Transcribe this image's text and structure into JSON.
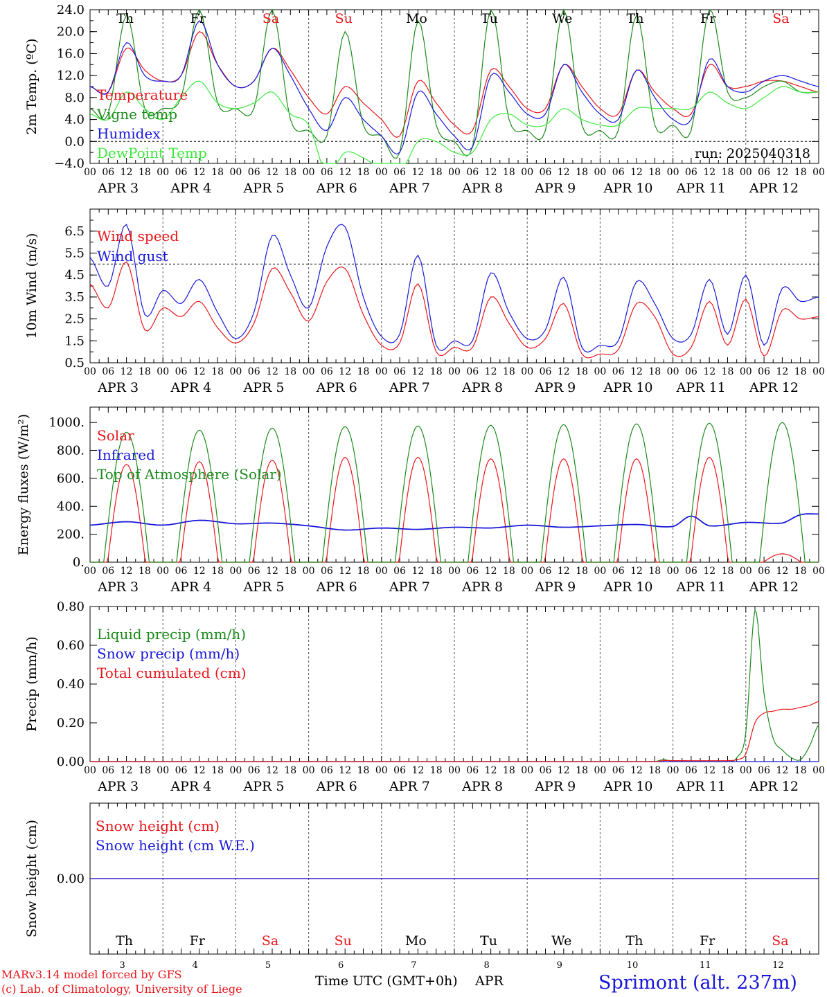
{
  "x_axis": {
    "hour_ticks": [
      "00",
      "06",
      "12",
      "18"
    ],
    "date_labels": [
      "APR  3",
      "APR  4",
      "APR  5",
      "APR  6",
      "APR  7",
      "APR  8",
      "APR  9",
      "APR 10",
      "APR 11",
      "APR 12"
    ],
    "day_numbers": [
      "3",
      "4",
      "5",
      "6",
      "7",
      "8",
      "9",
      "10",
      "11",
      "12"
    ],
    "days": [
      {
        "label": "Th",
        "color": "#000000"
      },
      {
        "label": "Fr",
        "color": "#000000"
      },
      {
        "label": "Sa",
        "color": "#e8161b"
      },
      {
        "label": "Su",
        "color": "#e8161b"
      },
      {
        "label": "Mo",
        "color": "#000000"
      },
      {
        "label": "Tu",
        "color": "#000000"
      },
      {
        "label": "We",
        "color": "#000000"
      },
      {
        "label": "Th",
        "color": "#000000"
      },
      {
        "label": "Fr",
        "color": "#000000"
      },
      {
        "label": "Sa",
        "color": "#e8161b"
      }
    ],
    "xlabel": "Time UTC (GMT+0h)",
    "xlabel_suffix": "APR"
  },
  "footer": {
    "credit_line1": "MARv3.14 model forced by GFS",
    "credit_line2": "(c) Lab. of Climatology, University of Liege",
    "location": "Sprimont (alt. 237m)"
  },
  "colors": {
    "red": "#e8161b",
    "green": "#1c8a1c",
    "blue": "#1717d9",
    "lightgreen": "#3ee83e",
    "black": "#000000"
  },
  "chart_data": [
    {
      "id": "temp",
      "type": "line",
      "ylabel": "2m Temp. (ºC)",
      "ylim": [
        -4,
        24
      ],
      "yticks": [
        "24.0",
        "20.0",
        "16.0",
        "12.0",
        "8.0",
        "4.0",
        "0.0",
        "−4.0"
      ],
      "yticks_values": [
        24,
        20,
        16,
        12,
        8,
        4,
        0,
        -4
      ],
      "ref_line": 0,
      "annotation": "run: 2025040318",
      "x_hours": [
        0,
        6,
        12,
        18,
        24,
        30,
        36,
        42,
        48,
        54,
        60,
        66,
        72,
        78,
        84,
        90,
        96,
        102,
        108,
        114,
        120,
        126,
        132,
        138,
        144,
        150,
        156,
        162,
        168,
        174,
        180,
        186,
        192,
        198,
        204,
        210,
        216,
        222,
        228,
        234,
        240
      ],
      "series": [
        {
          "name": "Temperature",
          "color": "red",
          "values": [
            10,
            9,
            17,
            13,
            11,
            12,
            20,
            14,
            10,
            11,
            17,
            13,
            8,
            5,
            10,
            7,
            4,
            1,
            11,
            7,
            3,
            2,
            13,
            10,
            6,
            6,
            14,
            10,
            6,
            5,
            13,
            9,
            6,
            5,
            14,
            10,
            10,
            11,
            11,
            10,
            9
          ]
        },
        {
          "name": "Vigne temp",
          "color": "green",
          "values": [
            6,
            5,
            23,
            6,
            6,
            8,
            24,
            7,
            6,
            6,
            24,
            4,
            2,
            1,
            20,
            3,
            1,
            -2,
            22,
            3,
            0,
            -1,
            24,
            4,
            2,
            2,
            24,
            3,
            2,
            2,
            23,
            3,
            3,
            2,
            24,
            9,
            8,
            10,
            11,
            9,
            9
          ]
        },
        {
          "name": "Humidex",
          "color": "blue",
          "values": [
            10,
            9,
            18,
            12,
            11,
            12,
            22,
            14,
            10,
            11,
            17,
            12,
            6,
            2,
            8,
            4,
            1,
            -2,
            9,
            5,
            1,
            -1,
            12,
            9,
            5,
            5,
            14,
            9,
            5,
            4,
            13,
            8,
            4,
            4,
            15,
            10,
            9,
            11,
            12,
            11,
            10
          ]
        },
        {
          "name": "DewPoint Temp",
          "color": "lightgreen",
          "values": [
            5,
            4,
            9,
            6,
            4,
            8,
            11,
            7,
            6,
            7,
            9,
            5,
            3,
            -6,
            -2,
            -3,
            -5,
            -6,
            0,
            0,
            -2,
            -2,
            4,
            5,
            3,
            3,
            6,
            4,
            3,
            3,
            6,
            6,
            6,
            6,
            9,
            7,
            6,
            8,
            10,
            9,
            9
          ]
        }
      ]
    },
    {
      "id": "wind",
      "type": "line",
      "ylabel": "10m Wind (m/s)",
      "ylim": [
        0.5,
        7.0
      ],
      "yticks": [
        "6.5",
        "5.5",
        "4.5",
        "3.5",
        "2.5",
        "1.5",
        "0.5"
      ],
      "yticks_values": [
        6.5,
        5.5,
        4.5,
        3.5,
        2.5,
        1.5,
        0.5
      ],
      "ref_line": 5.0,
      "x_hours": [
        0,
        6,
        12,
        18,
        24,
        30,
        36,
        42,
        48,
        54,
        60,
        66,
        72,
        78,
        84,
        90,
        96,
        102,
        108,
        114,
        120,
        126,
        132,
        138,
        144,
        150,
        156,
        162,
        168,
        174,
        180,
        186,
        192,
        198,
        204,
        210,
        216,
        222,
        228,
        234,
        240
      ],
      "series": [
        {
          "name": "Wind speed",
          "color": "red",
          "values": [
            4.1,
            3.0,
            5.1,
            2.0,
            3.0,
            2.6,
            3.3,
            2.1,
            1.4,
            2.3,
            4.8,
            3.7,
            2.4,
            4.2,
            4.8,
            2.7,
            1.3,
            1.4,
            4.1,
            1.0,
            1.2,
            1.2,
            3.5,
            2.3,
            1.2,
            1.6,
            3.2,
            0.9,
            0.9,
            1.1,
            3.2,
            2.6,
            0.9,
            1.2,
            3.3,
            1.3,
            3.4,
            0.8,
            2.9,
            2.5,
            2.6
          ]
        },
        {
          "name": "Wind gust",
          "color": "blue",
          "values": [
            5.3,
            4.0,
            6.8,
            2.7,
            3.8,
            3.2,
            4.3,
            2.8,
            1.6,
            2.8,
            6.3,
            4.5,
            3.0,
            5.8,
            6.7,
            3.5,
            1.7,
            1.8,
            5.4,
            1.3,
            1.5,
            1.5,
            4.6,
            2.8,
            1.6,
            2.0,
            4.4,
            1.2,
            1.3,
            1.5,
            4.2,
            3.2,
            1.6,
            1.8,
            4.3,
            1.8,
            4.5,
            1.3,
            3.9,
            3.3,
            3.5
          ]
        }
      ]
    },
    {
      "id": "energy",
      "type": "line",
      "ylabel": "Energy fluxes (W/m²)",
      "ylim": [
        0,
        1100
      ],
      "yticks": [
        "1000.",
        "800.",
        "600.",
        "400.",
        "200.",
        "0."
      ],
      "yticks_values": [
        1000,
        800,
        600,
        400,
        200,
        0
      ],
      "series": [
        {
          "name": "Solar",
          "color": "red",
          "peaks": [
            700,
            720,
            730,
            750,
            750,
            740,
            740,
            740,
            750,
            60
          ]
        },
        {
          "name": "Infrared",
          "color": "blue",
          "x_hours": [
            0,
            12,
            24,
            36,
            48,
            60,
            72,
            84,
            96,
            108,
            120,
            132,
            144,
            156,
            168,
            180,
            192,
            198,
            204,
            216,
            228,
            234,
            240
          ],
          "values": [
            265,
            290,
            265,
            300,
            275,
            280,
            260,
            230,
            245,
            235,
            250,
            245,
            265,
            250,
            260,
            270,
            255,
            330,
            260,
            285,
            280,
            340,
            345
          ]
        },
        {
          "name": "Top of Atmosphere (Solar)",
          "color": "green",
          "peaks": [
            930,
            945,
            960,
            970,
            975,
            980,
            985,
            990,
            995,
            1000
          ]
        }
      ]
    },
    {
      "id": "precip",
      "type": "line",
      "ylabel": "Precip (mm/h)",
      "ylim": [
        0,
        0.8
      ],
      "yticks": [
        "0.80",
        "0.60",
        "0.40",
        "0.20",
        "0.00"
      ],
      "yticks_values": [
        0.8,
        0.6,
        0.4,
        0.2,
        0
      ],
      "x_hours": [
        0,
        24,
        48,
        72,
        96,
        120,
        144,
        168,
        186,
        189,
        192,
        210,
        213,
        216,
        219,
        222,
        225,
        228,
        231,
        234,
        237,
        240
      ],
      "series": [
        {
          "name": "Liquid precip (mm/h)",
          "color": "green",
          "values": [
            0,
            0,
            0,
            0,
            0,
            0,
            0,
            0,
            0,
            0.01,
            0,
            0,
            0.02,
            0.15,
            0.78,
            0.35,
            0.12,
            0.06,
            0.02,
            0.01,
            0.08,
            0.19
          ]
        },
        {
          "name": "Snow precip (mm/h)",
          "color": "blue",
          "values": [
            0,
            0,
            0,
            0,
            0,
            0,
            0,
            0,
            0,
            0,
            0,
            0,
            0,
            0,
            0,
            0,
            0,
            0,
            0,
            0,
            0,
            0
          ]
        },
        {
          "name": "Total cumulated (cm)",
          "color": "red",
          "values": [
            0,
            0,
            0,
            0,
            0,
            0,
            0,
            0,
            0,
            0.005,
            0.005,
            0.005,
            0.01,
            0.04,
            0.2,
            0.25,
            0.26,
            0.27,
            0.27,
            0.28,
            0.29,
            0.31
          ]
        }
      ]
    },
    {
      "id": "snow",
      "type": "line",
      "ylabel": "Snow height (cm)",
      "ylim": [
        -1,
        1
      ],
      "yticks": [
        "0.00"
      ],
      "yticks_values": [
        0
      ],
      "series": [
        {
          "name": "Snow height (cm)",
          "color": "red",
          "values": [
            0,
            0
          ]
        },
        {
          "name": "Snow height (cm W.E.)",
          "color": "blue",
          "values": [
            0,
            0
          ]
        }
      ]
    }
  ]
}
